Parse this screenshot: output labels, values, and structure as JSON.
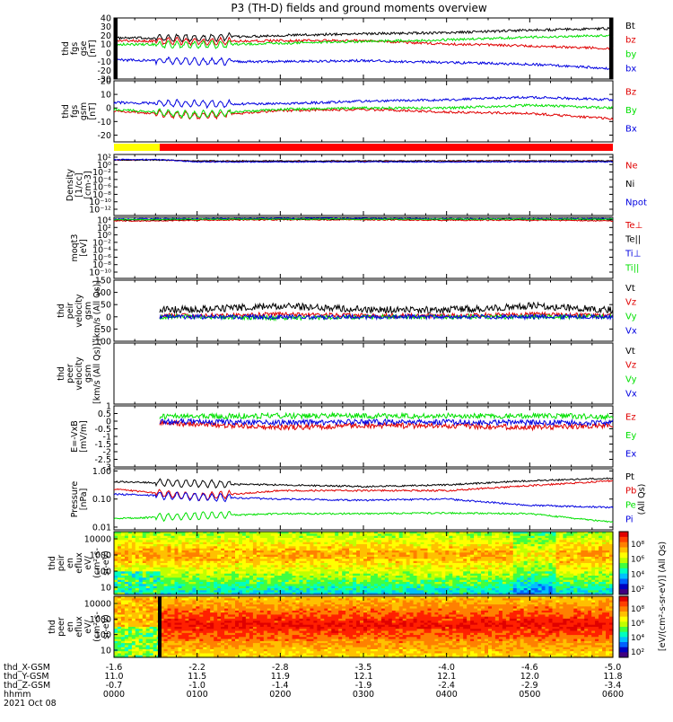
{
  "title": "P3 (TH-D) fields and ground moments overview",
  "colors": {
    "black": "#000000",
    "red": "#e00000",
    "green": "#00e000",
    "blue": "#0000e0",
    "yellow": "#ffff00",
    "bar_red": "#ff0000"
  },
  "chart_data": [
    {
      "type": "line",
      "ylabel": [
        "thd",
        "fgs",
        "gse",
        "[nT]"
      ],
      "ylim": [
        -30,
        40
      ],
      "y_ticks": [
        "40",
        "30",
        "20",
        "10",
        "0",
        "-10",
        "-20",
        "-30"
      ],
      "series": [
        {
          "name": "Bt",
          "color": "black",
          "x": [
            0,
            1,
            2,
            3,
            4,
            5,
            6
          ],
          "y": [
            17,
            17,
            20,
            22,
            23,
            26,
            28
          ]
        },
        {
          "name": "bz",
          "color": "red",
          "x": [
            0,
            1,
            2,
            3,
            4,
            5,
            6
          ],
          "y": [
            14,
            13,
            14,
            14,
            10,
            8,
            5
          ]
        },
        {
          "name": "by",
          "color": "green",
          "x": [
            0,
            1,
            2,
            3,
            4,
            5,
            6
          ],
          "y": [
            10,
            9,
            11,
            13,
            15,
            18,
            20
          ]
        },
        {
          "name": "bx",
          "color": "blue",
          "x": [
            0,
            1,
            2,
            3,
            4,
            5,
            6
          ],
          "y": [
            -8,
            -10,
            -10,
            -9,
            -11,
            -13,
            -18
          ]
        }
      ]
    },
    {
      "type": "line",
      "ylabel": [
        "thd",
        "fgs",
        "gsm",
        "[nT]"
      ],
      "ylim": [
        -25,
        20
      ],
      "y_ticks": [
        "20",
        "10",
        "0",
        "-10",
        "-20"
      ],
      "series": [
        {
          "name": "Bz",
          "color": "red",
          "x": [
            0,
            1,
            2,
            3,
            4,
            5,
            6
          ],
          "y": [
            -2,
            -6,
            -2,
            -1,
            -3,
            -4,
            -8
          ]
        },
        {
          "name": "By",
          "color": "green",
          "x": [
            0,
            1,
            2,
            3,
            4,
            5,
            6
          ],
          "y": [
            -1,
            -5,
            -1,
            0,
            0,
            2,
            0
          ]
        },
        {
          "name": "Bx",
          "color": "blue",
          "x": [
            0,
            1,
            2,
            3,
            4,
            5,
            6
          ],
          "y": [
            4,
            3,
            3,
            5,
            6,
            8,
            6
          ]
        }
      ]
    },
    {
      "type": "status_bar",
      "segments": [
        {
          "x0": 0,
          "x1": 0.55,
          "color": "yellow"
        },
        {
          "x0": 0.55,
          "x1": 6,
          "color": "bar_red"
        }
      ]
    },
    {
      "type": "line",
      "scale": "log",
      "ylabel": [
        "Density",
        "[1/cc]",
        "[cm-3]"
      ],
      "ylim_exp": [
        -15,
        3
      ],
      "y_ticks": [
        "10²",
        "10⁰",
        "10⁻²",
        "10⁻⁴",
        "10⁻⁶",
        "10⁻⁸",
        "10⁻¹⁰",
        "10⁻¹²"
      ],
      "series": [
        {
          "name": "Ne",
          "color": "red",
          "x": [
            0,
            0.55,
            1,
            2,
            3,
            4,
            5,
            6
          ],
          "y": [
            0.8,
            0.8,
            0.3,
            0.3,
            0.3,
            0.4,
            0.4,
            0.4
          ]
        },
        {
          "name": "Ni",
          "color": "black",
          "x": [
            0,
            0.55,
            1,
            2,
            3,
            4,
            5,
            6
          ],
          "y": [
            0.7,
            0.7,
            0.4,
            0.4,
            0.4,
            0.4,
            0.4,
            0.4
          ]
        },
        {
          "name": "Npot",
          "color": "blue",
          "x": [
            0,
            0.55,
            1,
            2,
            3,
            4,
            5,
            6
          ],
          "y": [
            1.0,
            1.0,
            0.2,
            0.2,
            0.2,
            0.2,
            0.2,
            0.2
          ]
        }
      ]
    },
    {
      "type": "line",
      "scale": "log",
      "ylabel": [
        "moqt3",
        "[eV]"
      ],
      "ylim_exp": [
        -12,
        5
      ],
      "y_ticks": [
        "10⁴",
        "10²",
        "10⁰",
        "10⁻²",
        "10⁻⁴",
        "10⁻⁶",
        "10⁻⁸",
        "10⁻¹⁰"
      ],
      "series": [
        {
          "name": "Te⊥",
          "color": "red",
          "x": [
            0,
            0.55,
            1,
            2,
            3,
            4,
            5,
            6
          ],
          "y": [
            4.0,
            4.0,
            4.2,
            4.3,
            4.3,
            4.2,
            4.2,
            4.0
          ]
        },
        {
          "name": "Te||",
          "color": "black",
          "x": [
            0,
            0.55,
            1,
            2,
            3,
            4,
            5,
            6
          ],
          "y": [
            4.3,
            4.3,
            4.5,
            4.5,
            4.5,
            4.5,
            4.5,
            4.4
          ]
        },
        {
          "name": "Ti⊥",
          "color": "blue",
          "x": [
            0,
            0.55,
            1,
            2,
            3,
            4,
            5,
            6
          ],
          "y": [
            4.5,
            4.6,
            4.6,
            4.7,
            4.7,
            4.6,
            4.6,
            4.6
          ]
        },
        {
          "name": "Ti||",
          "color": "green",
          "x": [
            0,
            0.55,
            1,
            2,
            3,
            4,
            5,
            6
          ],
          "y": [
            4.4,
            4.4,
            4.5,
            4.5,
            4.5,
            4.5,
            4.5,
            4.5
          ]
        }
      ]
    },
    {
      "type": "line",
      "ylabel": [
        "thd",
        "peir",
        "velocity",
        "gsm",
        "[km/s (All Qs)]"
      ],
      "ylim": [
        -100,
        150
      ],
      "y_ticks": [
        "150",
        "100",
        "50",
        "0",
        "-50",
        "-100"
      ],
      "series": [
        {
          "name": "Vt",
          "color": "black",
          "x": [
            0.55,
            1,
            2,
            3,
            4,
            5,
            6
          ],
          "y": [
            30,
            30,
            45,
            30,
            28,
            45,
            28
          ]
        },
        {
          "name": "Vz",
          "color": "red",
          "x": [
            0.55,
            1,
            2,
            3,
            4,
            5,
            6
          ],
          "y": [
            5,
            5,
            10,
            5,
            5,
            10,
            5
          ]
        },
        {
          "name": "Vy",
          "color": "green",
          "x": [
            0.55,
            1,
            2,
            3,
            4,
            5,
            6
          ],
          "y": [
            0,
            0,
            -5,
            0,
            0,
            0,
            0
          ]
        },
        {
          "name": "Vx",
          "color": "blue",
          "x": [
            0.55,
            1,
            2,
            3,
            4,
            5,
            6
          ],
          "y": [
            0,
            0,
            0,
            0,
            0,
            0,
            0
          ]
        }
      ]
    },
    {
      "type": "line",
      "ylabel": [
        "thd",
        "peer",
        "velocity",
        "gsm",
        "[km/s (All Qs)]"
      ],
      "series": [
        {
          "name": "Vt",
          "color": "black",
          "x": [],
          "y": []
        },
        {
          "name": "Vz",
          "color": "red",
          "x": [],
          "y": []
        },
        {
          "name": "Vy",
          "color": "green",
          "x": [],
          "y": []
        },
        {
          "name": "Vx",
          "color": "blue",
          "x": [],
          "y": []
        }
      ]
    },
    {
      "type": "line",
      "ylabel": [
        "E=-VxB",
        "[mV/m]"
      ],
      "ylim": [
        -3,
        1
      ],
      "y_ticks": [
        "1",
        "0.5",
        "0",
        "-0.5",
        "-1",
        "-1.5",
        "-2",
        "-2.5",
        "-3"
      ],
      "series": [
        {
          "name": "Ez",
          "color": "red",
          "x": [
            0.55,
            1,
            2,
            3,
            4,
            5,
            6
          ],
          "y": [
            -0.1,
            -0.2,
            -0.4,
            -0.3,
            -0.3,
            -0.4,
            -0.3
          ]
        },
        {
          "name": "Ey",
          "color": "green",
          "x": [
            0.55,
            1,
            2,
            3,
            4,
            5,
            6
          ],
          "y": [
            0.3,
            0.3,
            0.35,
            0.35,
            0.35,
            0.35,
            0.3
          ]
        },
        {
          "name": "Ex",
          "color": "blue",
          "x": [
            0.55,
            1,
            2,
            3,
            4,
            5,
            6
          ],
          "y": [
            0.0,
            -0.05,
            -0.1,
            -0.05,
            -0.05,
            -0.1,
            -0.1
          ]
        }
      ]
    },
    {
      "type": "line",
      "scale": "log",
      "ylabel": [
        "Pressure",
        "[nPa]"
      ],
      "ylim": [
        0.008,
        1.2
      ],
      "y_ticks": [
        "1.00",
        "0.10",
        "0.01"
      ],
      "series": [
        {
          "name": "Pt",
          "color": "black",
          "x": [
            0,
            1,
            2,
            3,
            4,
            5,
            6
          ],
          "y": [
            0.42,
            0.35,
            0.32,
            0.28,
            0.32,
            0.45,
            0.55
          ]
        },
        {
          "name": "Pb",
          "color": "red",
          "x": [
            0,
            1,
            2,
            3,
            4,
            5,
            6
          ],
          "y": [
            0.23,
            0.12,
            0.2,
            0.2,
            0.2,
            0.3,
            0.45
          ]
        },
        {
          "name": "Pe",
          "color": "green",
          "x": [
            0,
            1,
            2,
            3,
            4,
            5,
            6
          ],
          "y": [
            0.02,
            0.025,
            0.03,
            0.03,
            0.032,
            0.03,
            0.015
          ]
        },
        {
          "name": "Pi",
          "color": "blue",
          "x": [
            0,
            1,
            2,
            3,
            4,
            5,
            6
          ],
          "y": [
            0.15,
            0.12,
            0.1,
            0.09,
            0.1,
            0.06,
            0.05
          ]
        }
      ],
      "right_label": "(All Qs)"
    },
    {
      "type": "heatmap",
      "ylabel": [
        "thd",
        "peir",
        "en",
        "eflux",
        "eV/",
        "(cm²-s-",
        "sr-eV)"
      ],
      "y_ticks": [
        "10000",
        "1000",
        "100",
        "10"
      ],
      "colorbar_ticks": [
        "10⁸",
        "10⁶",
        "10⁴",
        "10²"
      ],
      "colorbar_label": "[eV/(cm²-s-sr-eV)] (All Qs)"
    },
    {
      "type": "heatmap",
      "ylabel": [
        "thd",
        "peer",
        "en",
        "eflux",
        "eV/",
        "(cm²-s-",
        "sr-eV)"
      ],
      "y_ticks": [
        "10000",
        "1000",
        "100",
        "10"
      ],
      "colorbar_ticks": [
        "10⁸",
        "10⁶",
        "10⁴",
        "10²"
      ],
      "colorbar_label": "[eV/(cm²-s-sr-eV)] (All Qs)"
    }
  ],
  "x_axis": {
    "rows": [
      {
        "label": "thd_X-GSM",
        "values": [
          "-1.6",
          "-2.2",
          "-2.8",
          "-3.5",
          "-4.0",
          "-4.6",
          "-5.0"
        ]
      },
      {
        "label": "thd_Y-GSM",
        "values": [
          "11.0",
          "11.5",
          "11.9",
          "12.1",
          "12.1",
          "12.0",
          "11.8"
        ]
      },
      {
        "label": "thd_Z-GSM",
        "values": [
          "-0.7",
          "-1.0",
          "-1.4",
          "-1.9",
          "-2.4",
          "-2.9",
          "-3.4"
        ]
      },
      {
        "label": "hhmm",
        "values": [
          "0000",
          "0100",
          "0200",
          "0300",
          "0400",
          "0500",
          "0600"
        ]
      }
    ],
    "date": "2021 Oct 08"
  }
}
